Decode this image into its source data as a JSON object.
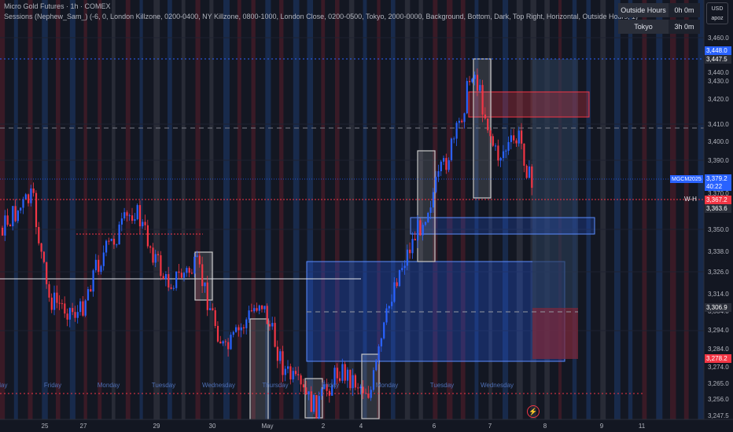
{
  "header": {
    "title": "Micro Gold Futures · 1h · COMEX",
    "indicator": "Sessions (Nephew_Sam_) (-6, 0, London Killzone, 0200-0400, NY Killzone, 0800-1000, London Close, 0200-0500, Tokyo, 2000-0000, Background, Bottom, Dark, Top Right, Horizontal, Outside Hours, 1)"
  },
  "session_table": [
    {
      "name": "Outside Hours",
      "value": "0h 0m"
    },
    {
      "name": "Tokyo",
      "value": "3h 0m"
    }
  ],
  "currency": {
    "line1": "USD",
    "line2": "apoz"
  },
  "price_axis": {
    "ticks": [
      "3,460.0",
      "3,440.0",
      "3,430.0",
      "3,420.0",
      "3,410.0",
      "3,400.0",
      "3,390.0",
      "3,370.0",
      "3,350.0",
      "3,338.0",
      "3,326.0",
      "3,314.0",
      "3,304.0",
      "3,294.0",
      "3,284.0",
      "3,274.0",
      "3,265.0",
      "3,256.0",
      "3,247.5"
    ],
    "tags": [
      {
        "label": "3,448.0",
        "color": "#2962ff"
      },
      {
        "label": "3,447.5",
        "color": "#2a2e39"
      },
      {
        "label": "3,379.2",
        "color": "#2962ff"
      },
      {
        "label": "40:22",
        "color": "#2962ff"
      },
      {
        "label": "3,367.2",
        "color": "#f23645"
      },
      {
        "label": "3,363.6",
        "color": "#2a2e39"
      },
      {
        "label": "3,306.9",
        "color": "#2a2e39"
      },
      {
        "label": "3,278.2",
        "color": "#f23645"
      }
    ]
  },
  "symbol_tag": "MGCM2025",
  "wh_label": "W-H",
  "time_axis": {
    "dates": [
      "25",
      "27",
      "29",
      "30",
      "May",
      "2",
      "4",
      "6",
      "7",
      "8",
      "9",
      "11"
    ],
    "weekdays": [
      "day",
      "Friday",
      "Monday",
      "Tuesday",
      "Wednesday",
      "Thursday",
      "Friday",
      "Monday",
      "Tuesday",
      "Wednesday"
    ]
  },
  "colors": {
    "background": "#131722",
    "up": "#2962ff",
    "down": "#f23645",
    "accent": "#2962ff"
  },
  "icons": {
    "replay": "lightning-icon"
  }
}
